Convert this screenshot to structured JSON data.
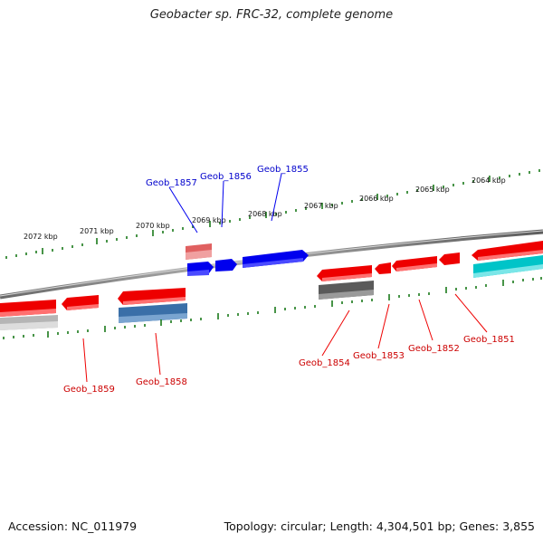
{
  "title": "Geobacter sp. FRC-32, complete genome",
  "footer": {
    "accession": "Accession: NC_011979",
    "topology": "Topology: circular; Length: 4,304,501 bp; Genes: 3,855"
  },
  "colors": {
    "backbone": "#7a7a7a",
    "tick": "#1a7a1a",
    "forward_gene": "#0000ee",
    "reverse_gene": "#ee0000",
    "forward_label": "#0000cc",
    "reverse_label": "#cc0000"
  },
  "kbp_labels": [
    "2072 kbp",
    "2071 kbp",
    "2070 kbp",
    "2069 kbp",
    "2068 kbp",
    "2067 kbp",
    "2066 kbp",
    "2065 kbp",
    "2064 kbp"
  ],
  "gene_labels": {
    "forward": [
      "Geob_1857",
      "Geob_1856",
      "Geob_1855"
    ],
    "reverse": [
      "Geob_1859",
      "Geob_1858",
      "Geob_1854",
      "Geob_1853",
      "Geob_1852",
      "Geob_1851"
    ]
  }
}
